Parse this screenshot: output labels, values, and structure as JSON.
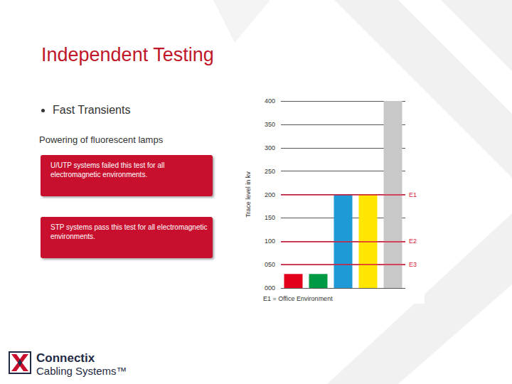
{
  "slide": {
    "title": "Independent Testing",
    "bullet": "Fast Transients",
    "subheading": "Powering of fluorescent lamps",
    "boxes": [
      "U/UTP systems failed this test for all electromagnetic environments.",
      "STP systems pass this test for all electromagnetic environments."
    ],
    "logo": {
      "name": "Connectix",
      "tagline": "Cabling Systems™"
    }
  },
  "chart_data": {
    "type": "bar",
    "y_label": "Trace level in kv",
    "categories": [
      null,
      null,
      null,
      null,
      null
    ],
    "values": [
      30,
      30,
      200,
      200,
      400
    ],
    "colors": [
      "#e2001a",
      "#009a44",
      "#1e9ad6",
      "#ffe600",
      "#c8c8c8"
    ],
    "ylim": [
      0,
      400
    ],
    "yticks": [
      {
        "value": 0,
        "label": "000"
      },
      {
        "value": 50,
        "label": "050"
      },
      100,
      150,
      200,
      250,
      300,
      350,
      400
    ],
    "grid": true,
    "tick_labels": "y",
    "reference_lines": [
      {
        "label": "E1",
        "value": 200,
        "color": "#d7193a"
      },
      {
        "label": "E2",
        "value": 100,
        "color": "#d7193a"
      },
      {
        "label": "E3",
        "value": 50,
        "color": "#d7193a"
      }
    ],
    "note": "E1 = Office Environment"
  }
}
